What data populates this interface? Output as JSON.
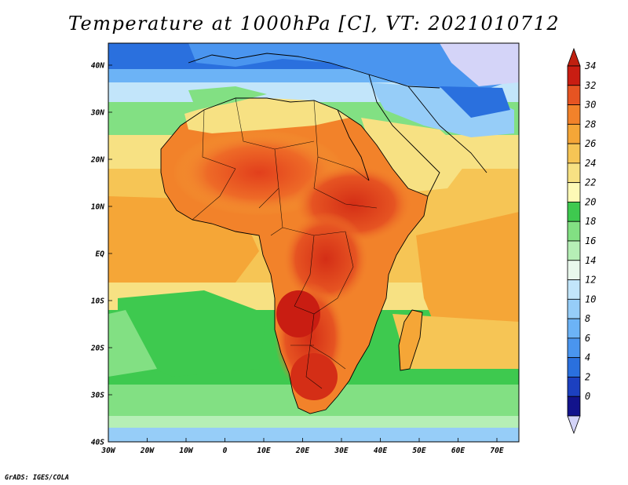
{
  "title": "Temperature at 1000hPa [C], VT: 2021010712",
  "credit": "GrADS: IGES/COLA",
  "axes": {
    "x_ticks": [
      "30W",
      "20W",
      "10W",
      "0",
      "10E",
      "20E",
      "30E",
      "40E",
      "50E",
      "60E",
      "70E"
    ],
    "y_ticks": [
      "40N",
      "30N",
      "20N",
      "10N",
      "EQ",
      "10S",
      "20S",
      "30S",
      "40S"
    ]
  },
  "colorbar": {
    "levels": [
      0,
      2,
      4,
      6,
      8,
      10,
      12,
      14,
      16,
      18,
      20,
      22,
      24,
      26,
      28,
      30,
      32,
      34
    ],
    "colors": [
      "#12138c",
      "#1c40c0",
      "#2a70de",
      "#4a95ef",
      "#6cb3f6",
      "#96cdf8",
      "#c2e5fa",
      "#e9f8ec",
      "#b6efb6",
      "#82e083",
      "#3ec94f",
      "#fdf9b6",
      "#f7e183",
      "#f6c555",
      "#f5a637",
      "#f2822a",
      "#e65422",
      "#c91d12"
    ],
    "under_color": "#d4d4f8",
    "over_color": "#c02010"
  },
  "colors": {
    "ocean_cold": "#2c64d8",
    "ocean_temperate": "#82e083",
    "ocean_warm": "#f7e183",
    "land_hot": "#e65422",
    "land_cool": "#c2e5fa"
  }
}
